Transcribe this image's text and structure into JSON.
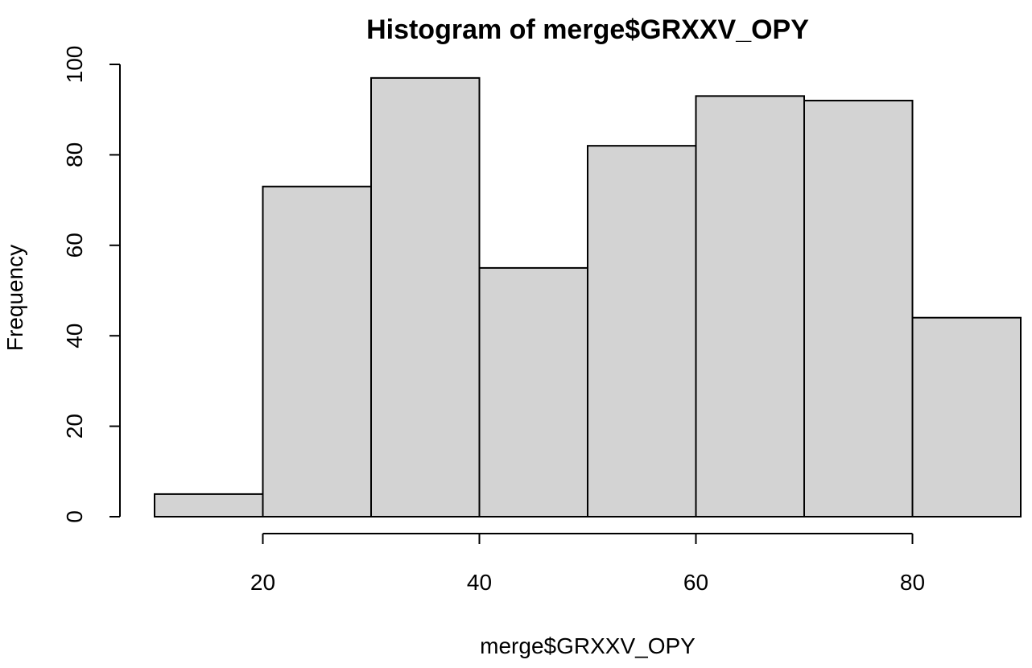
{
  "chart_data": {
    "type": "bar",
    "subtype": "histogram",
    "title": "Histogram of merge$GRXXV_OPY",
    "xlabel": "merge$GRXXV_OPY",
    "ylabel": "Frequency",
    "bins": [
      {
        "start": 10,
        "end": 20,
        "count": 5
      },
      {
        "start": 20,
        "end": 30,
        "count": 73
      },
      {
        "start": 30,
        "end": 40,
        "count": 97
      },
      {
        "start": 40,
        "end": 50,
        "count": 55
      },
      {
        "start": 50,
        "end": 60,
        "count": 82
      },
      {
        "start": 60,
        "end": 70,
        "count": 93
      },
      {
        "start": 70,
        "end": 80,
        "count": 92
      },
      {
        "start": 80,
        "end": 90,
        "count": 44
      }
    ],
    "xlim": [
      10,
      90
    ],
    "ylim": [
      0,
      100
    ],
    "x_ticks": [
      20,
      40,
      60,
      80
    ],
    "y_ticks": [
      0,
      20,
      40,
      60,
      80,
      100
    ],
    "bar_color": "#d3d3d3",
    "edge_color": "#000000",
    "grid": false,
    "legend": "none"
  }
}
